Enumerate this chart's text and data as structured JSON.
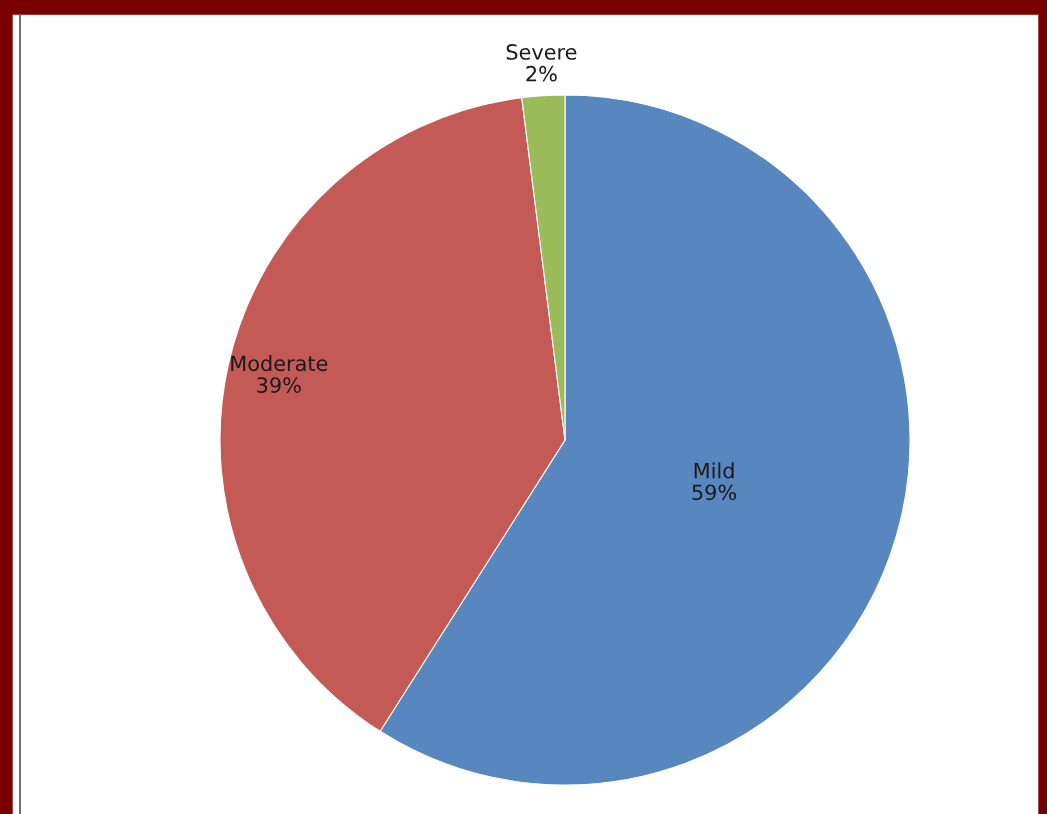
{
  "chart_data": {
    "type": "pie",
    "categories": [
      "Mild",
      "Moderate",
      "Severe"
    ],
    "values": [
      59,
      39,
      2
    ],
    "value_labels": [
      "59%",
      "39%",
      "2%"
    ],
    "colors": [
      "#5887c0",
      "#c45a56",
      "#9bbb59"
    ]
  }
}
